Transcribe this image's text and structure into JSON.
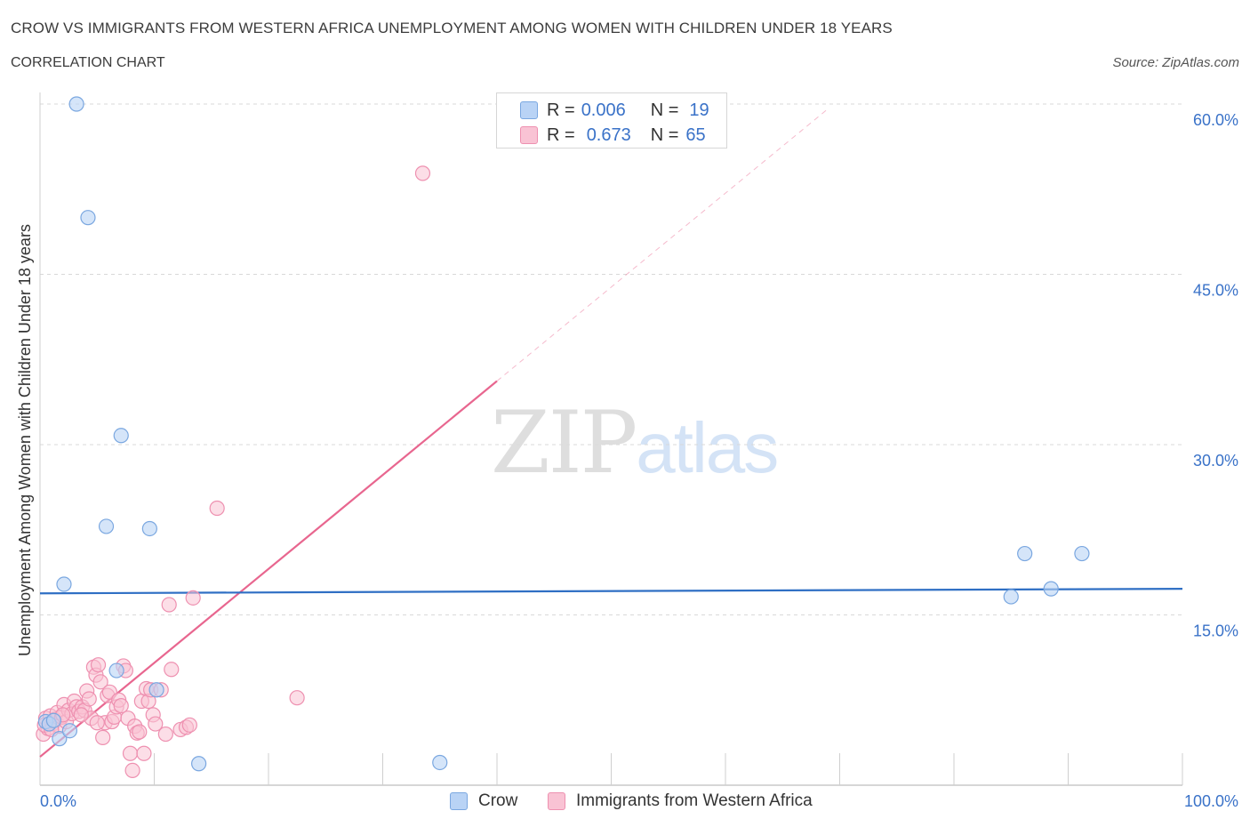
{
  "header": {
    "title": "CROW VS IMMIGRANTS FROM WESTERN AFRICA UNEMPLOYMENT AMONG WOMEN WITH CHILDREN UNDER 18 YEARS",
    "subtitle": "CORRELATION CHART",
    "source": "Source: ZipAtlas.com"
  },
  "watermark": {
    "zip": "ZIP",
    "atlas": "atlas"
  },
  "stats": {
    "crow": {
      "r_label": "R =",
      "r_value": "0.006",
      "n_label": "N =",
      "n_value": "19"
    },
    "immigrants": {
      "r_label": "R =",
      "r_value": "0.673",
      "n_label": "N =",
      "n_value": "65"
    }
  },
  "colors": {
    "crow_fill": "#b9d3f5",
    "crow_stroke": "#7aa7e0",
    "crow_line": "#2f6fc4",
    "imm_fill": "#f9c3d4",
    "imm_stroke": "#ee90b0",
    "imm_line": "#e8668f",
    "axis_label": "#3a72c8",
    "grid": "#d9d9d9"
  },
  "chart_data": {
    "type": "scatter",
    "title": "CROW VS IMMIGRANTS FROM WESTERN AFRICA UNEMPLOYMENT AMONG WOMEN WITH CHILDREN UNDER 18 YEARS",
    "xlabel": "",
    "ylabel": "Unemployment Among Women with Children Under 18 years",
    "xlim": [
      0,
      100
    ],
    "ylim": [
      0,
      60
    ],
    "x_tick_labels": [
      "0.0%",
      "100.0%"
    ],
    "y_ticks": [
      15,
      30,
      45,
      60
    ],
    "y_tick_labels": [
      "15.0%",
      "30.0%",
      "45.0%",
      "60.0%"
    ],
    "legend_position": "top-center",
    "series": [
      {
        "name": "Crow",
        "r": 0.006,
        "n": 19,
        "trend": {
          "x": [
            0,
            100
          ],
          "y": [
            16.9,
            17.3
          ]
        },
        "points": [
          {
            "x": 0.5,
            "y": 5.6
          },
          {
            "x": 0.8,
            "y": 5.4
          },
          {
            "x": 1.2,
            "y": 5.7
          },
          {
            "x": 1.7,
            "y": 4.1
          },
          {
            "x": 2.1,
            "y": 17.7
          },
          {
            "x": 2.6,
            "y": 4.8
          },
          {
            "x": 3.2,
            "y": 60.0
          },
          {
            "x": 4.2,
            "y": 50.0
          },
          {
            "x": 5.8,
            "y": 22.8
          },
          {
            "x": 6.7,
            "y": 10.1
          },
          {
            "x": 7.1,
            "y": 30.8
          },
          {
            "x": 9.6,
            "y": 22.6
          },
          {
            "x": 10.2,
            "y": 8.4
          },
          {
            "x": 13.9,
            "y": 1.9
          },
          {
            "x": 35.0,
            "y": 2.0
          },
          {
            "x": 85.0,
            "y": 16.6
          },
          {
            "x": 86.2,
            "y": 20.4
          },
          {
            "x": 88.5,
            "y": 17.3
          },
          {
            "x": 91.2,
            "y": 20.4
          }
        ]
      },
      {
        "name": "Immigrants from Western Africa",
        "r": 0.673,
        "n": 65,
        "trend": {
          "x": [
            0,
            40
          ],
          "y": [
            2.5,
            35.6
          ]
        },
        "trend_dashed_extension": {
          "x": [
            40,
            69
          ],
          "y": [
            35.6,
            59.6
          ]
        },
        "points": [
          {
            "x": 0.3,
            "y": 4.5
          },
          {
            "x": 0.5,
            "y": 5.9
          },
          {
            "x": 0.7,
            "y": 5.0
          },
          {
            "x": 0.9,
            "y": 6.1
          },
          {
            "x": 1.1,
            "y": 5.4
          },
          {
            "x": 1.3,
            "y": 5.8
          },
          {
            "x": 1.5,
            "y": 6.4
          },
          {
            "x": 1.7,
            "y": 5.2
          },
          {
            "x": 1.9,
            "y": 6.0
          },
          {
            "x": 2.1,
            "y": 7.1
          },
          {
            "x": 2.3,
            "y": 5.6
          },
          {
            "x": 2.5,
            "y": 6.6
          },
          {
            "x": 2.8,
            "y": 6.3
          },
          {
            "x": 3.0,
            "y": 7.4
          },
          {
            "x": 3.2,
            "y": 6.9
          },
          {
            "x": 3.4,
            "y": 6.5
          },
          {
            "x": 3.7,
            "y": 6.9
          },
          {
            "x": 3.9,
            "y": 6.6
          },
          {
            "x": 4.1,
            "y": 8.3
          },
          {
            "x": 4.3,
            "y": 7.6
          },
          {
            "x": 4.5,
            "y": 5.9
          },
          {
            "x": 4.7,
            "y": 10.4
          },
          {
            "x": 4.9,
            "y": 9.7
          },
          {
            "x": 5.1,
            "y": 10.6
          },
          {
            "x": 5.3,
            "y": 9.1
          },
          {
            "x": 5.5,
            "y": 4.2
          },
          {
            "x": 5.7,
            "y": 5.5
          },
          {
            "x": 5.9,
            "y": 7.9
          },
          {
            "x": 6.1,
            "y": 8.2
          },
          {
            "x": 6.3,
            "y": 5.6
          },
          {
            "x": 6.5,
            "y": 6.0
          },
          {
            "x": 6.7,
            "y": 6.9
          },
          {
            "x": 6.9,
            "y": 7.5
          },
          {
            "x": 7.1,
            "y": 7.0
          },
          {
            "x": 7.3,
            "y": 10.5
          },
          {
            "x": 7.5,
            "y": 10.1
          },
          {
            "x": 7.7,
            "y": 5.9
          },
          {
            "x": 7.9,
            "y": 2.8
          },
          {
            "x": 8.1,
            "y": 1.3
          },
          {
            "x": 8.3,
            "y": 5.2
          },
          {
            "x": 8.5,
            "y": 4.6
          },
          {
            "x": 8.7,
            "y": 4.7
          },
          {
            "x": 8.9,
            "y": 7.4
          },
          {
            "x": 9.1,
            "y": 2.8
          },
          {
            "x": 9.3,
            "y": 8.5
          },
          {
            "x": 9.5,
            "y": 7.4
          },
          {
            "x": 9.7,
            "y": 8.4
          },
          {
            "x": 9.9,
            "y": 6.2
          },
          {
            "x": 10.1,
            "y": 5.4
          },
          {
            "x": 10.6,
            "y": 8.4
          },
          {
            "x": 11.0,
            "y": 4.5
          },
          {
            "x": 11.3,
            "y": 15.9
          },
          {
            "x": 11.5,
            "y": 10.2
          },
          {
            "x": 12.3,
            "y": 4.9
          },
          {
            "x": 12.8,
            "y": 5.1
          },
          {
            "x": 13.1,
            "y": 5.3
          },
          {
            "x": 13.4,
            "y": 16.5
          },
          {
            "x": 15.5,
            "y": 24.4
          },
          {
            "x": 22.5,
            "y": 7.7
          },
          {
            "x": 33.5,
            "y": 53.9
          },
          {
            "x": 0.4,
            "y": 5.3
          },
          {
            "x": 1.0,
            "y": 4.9
          },
          {
            "x": 2.0,
            "y": 6.2
          },
          {
            "x": 3.6,
            "y": 6.2
          },
          {
            "x": 5.0,
            "y": 5.5
          }
        ]
      }
    ]
  },
  "legend": {
    "items": [
      {
        "label": "Crow"
      },
      {
        "label": "Immigrants from Western Africa"
      }
    ]
  }
}
